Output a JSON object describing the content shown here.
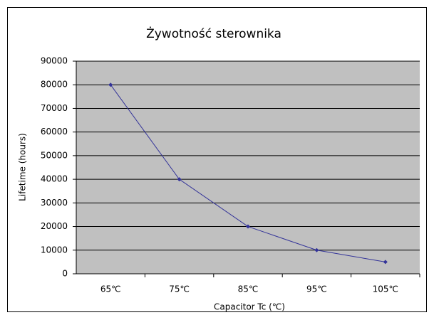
{
  "chart_data": {
    "type": "line",
    "title": "Żywotność sterownika",
    "x_label": "Capacitor Tc (℃)",
    "y_label": "Lifetime (hours)",
    "categories": [
      "65℃",
      "75℃",
      "85℃",
      "95℃",
      "105℃"
    ],
    "series": [
      {
        "name": "Lifetime",
        "color": "#333399",
        "values": [
          80000,
          40000,
          20000,
          10000,
          5000
        ]
      }
    ],
    "ylim": [
      0,
      90000
    ],
    "yticks": [
      0,
      10000,
      20000,
      30000,
      40000,
      50000,
      60000,
      70000,
      80000,
      90000
    ],
    "grid": true,
    "plot_background": "#c0c0c0"
  }
}
